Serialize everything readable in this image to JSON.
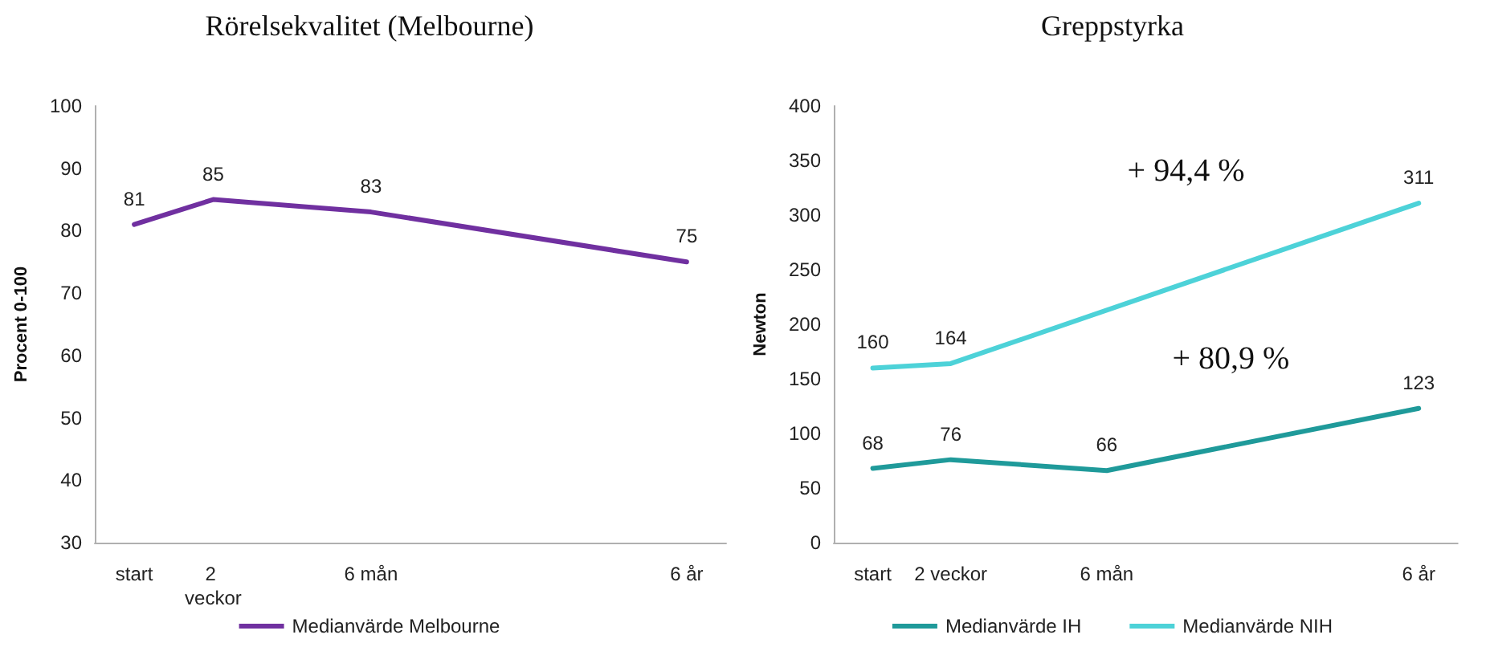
{
  "chart_data": [
    {
      "type": "line",
      "title": "Rörelsekvalitet (Melbourne)",
      "ylabel": "Procent 0-100",
      "categories": [
        "start",
        "2 veckor",
        null,
        "6 mån",
        null,
        null,
        null,
        "6 år"
      ],
      "series": [
        {
          "name": "Medianvärde Melbourne",
          "color": "#7030a0",
          "values": [
            81,
            85,
            null,
            83,
            null,
            null,
            null,
            75
          ]
        }
      ],
      "ylim": [
        30,
        100
      ],
      "yticks": [
        30,
        40,
        50,
        60,
        70,
        80,
        90,
        100
      ],
      "grid": false,
      "legend": "bottom",
      "marker": "none",
      "line_style": "solid",
      "data_labels": true
    },
    {
      "type": "line",
      "title": "Greppstyrka",
      "ylabel": "Newton",
      "categories": [
        "start",
        "2 veckor",
        null,
        "6 mån",
        null,
        null,
        null,
        "6 år"
      ],
      "series": [
        {
          "name": "Medianvärde IH",
          "color": "#1f9a9a",
          "values": [
            68,
            76,
            null,
            66,
            null,
            null,
            null,
            123
          ]
        },
        {
          "name": "Medianvärde NIH",
          "color": "#4dd2d8",
          "values": [
            160,
            164,
            null,
            null,
            null,
            null,
            null,
            311
          ]
        }
      ],
      "ylim": [
        0,
        400
      ],
      "yticks": [
        0,
        50,
        100,
        150,
        200,
        250,
        300,
        350,
        400
      ],
      "grid": false,
      "legend": "bottom",
      "marker": "none",
      "line_style": "solid",
      "data_labels": true,
      "annotations": [
        "+ 94,4 %",
        "+ 80,9 %"
      ]
    }
  ]
}
